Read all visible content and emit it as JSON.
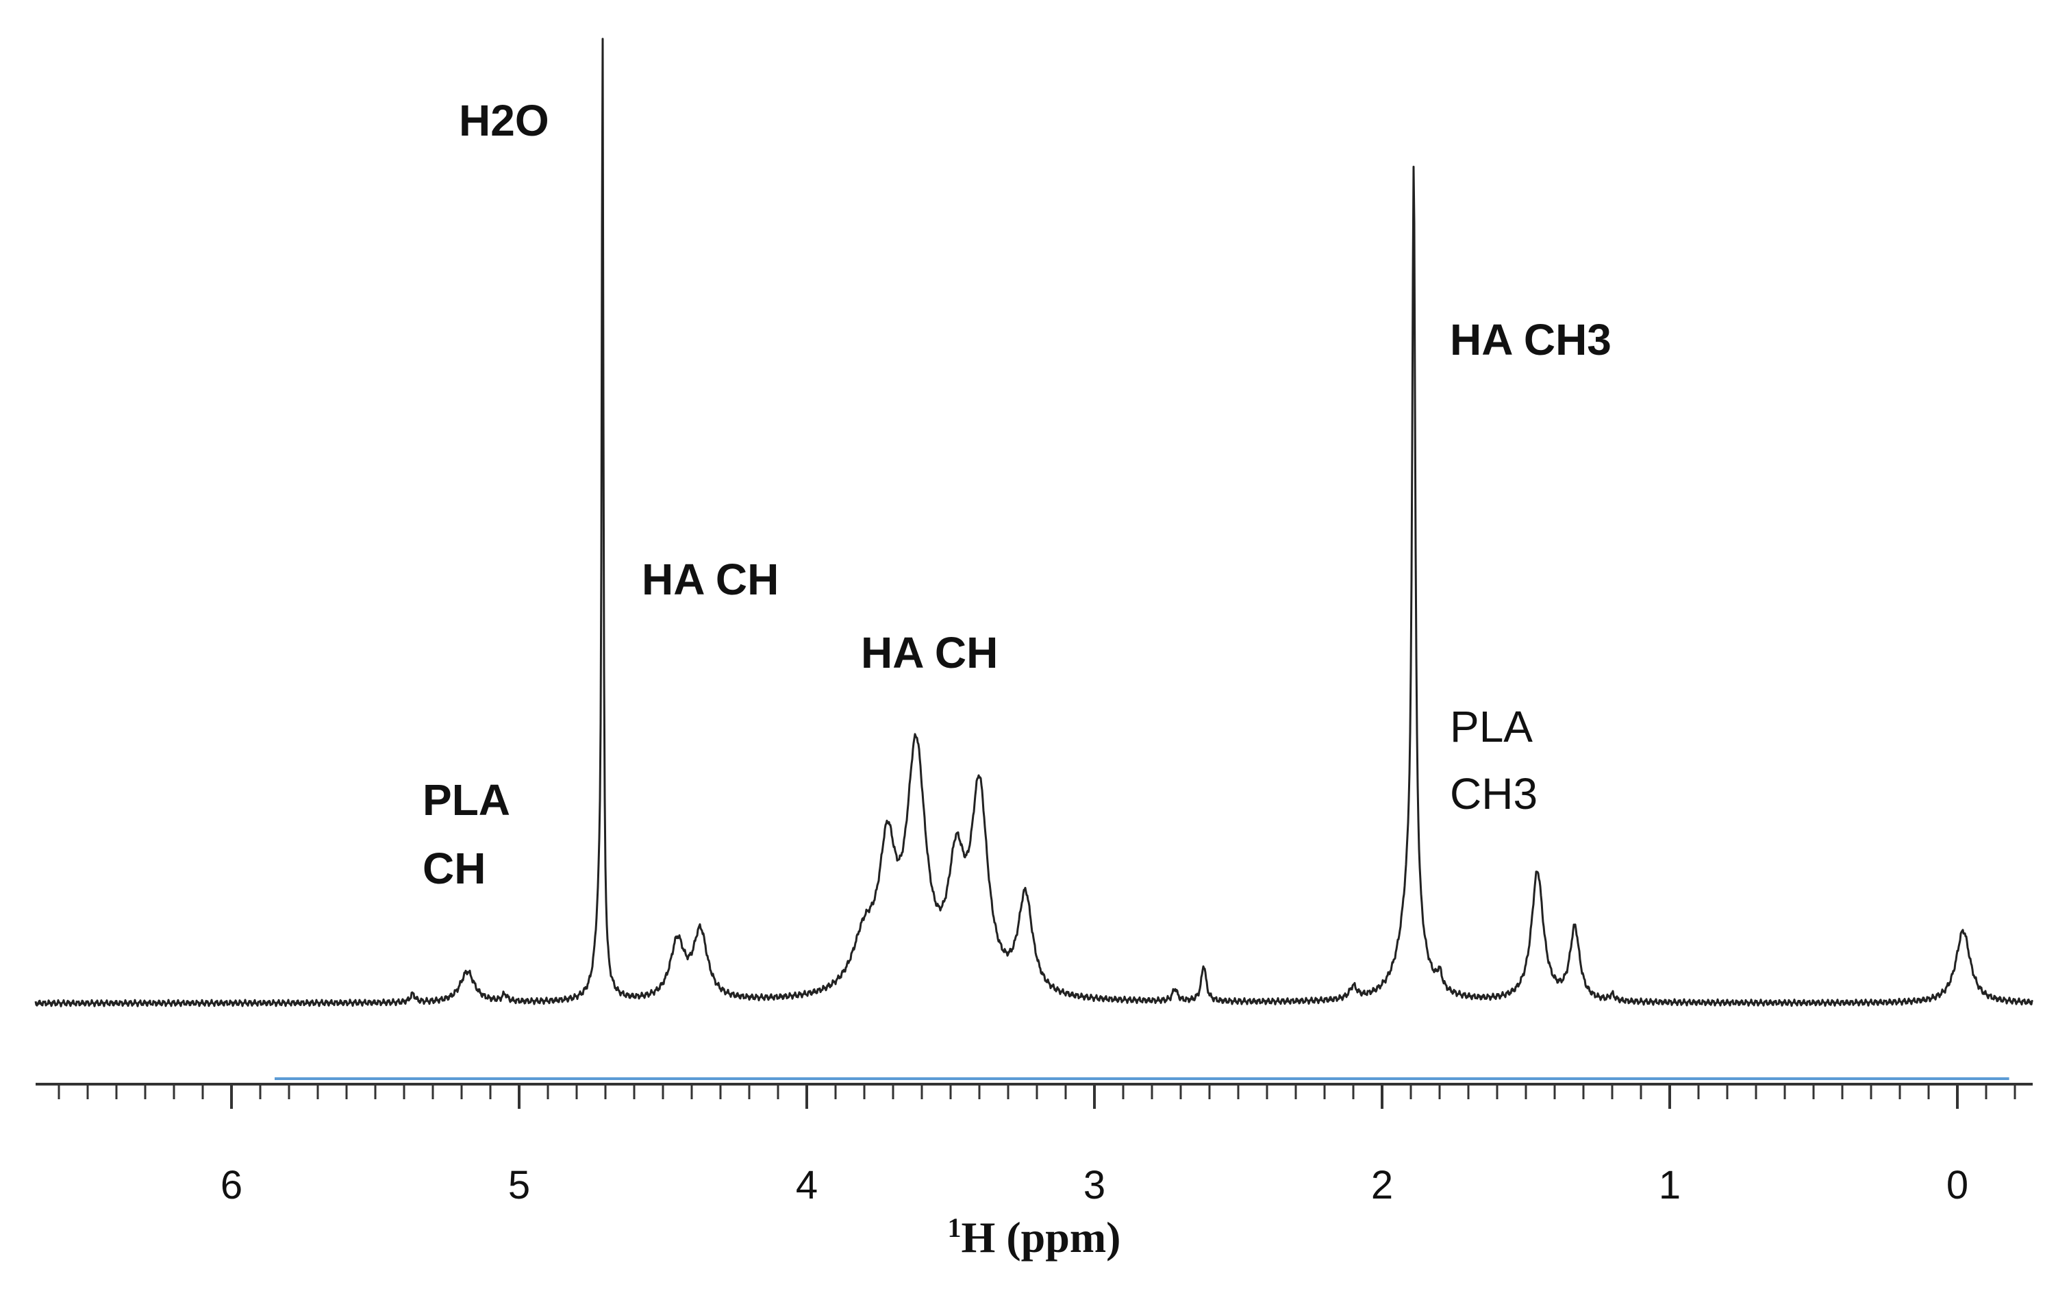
{
  "chart_data": {
    "type": "line",
    "title": "",
    "xlabel": "1H (ppm)",
    "xlabel_parts": {
      "superscript": "1",
      "main": "H (ppm)"
    },
    "ylabel": "",
    "x_reversed": true,
    "xlim": [
      6.6,
      -0.25
    ],
    "xticks": [
      6,
      5,
      4,
      3,
      2,
      1,
      0
    ],
    "xtick_labels": [
      "6",
      "5",
      "4",
      "3",
      "2",
      "1",
      "0"
    ],
    "grid": false,
    "integral_range": [
      5.85,
      -0.18
    ],
    "colors": {
      "spectrum": "#222222",
      "axis": "#333333",
      "integral": "#5b9bd5"
    },
    "peaks": [
      {
        "ppm": 5.37,
        "height": 0.008,
        "width": 0.01
      },
      {
        "ppm": 5.18,
        "height": 0.03,
        "width": 0.03
      },
      {
        "ppm": 5.05,
        "height": 0.007,
        "width": 0.01
      },
      {
        "ppm": 4.72,
        "height": 0.08,
        "width": 0.018
      },
      {
        "ppm": 4.71,
        "height": 0.885,
        "width": 0.0035
      },
      {
        "ppm": 4.45,
        "height": 0.055,
        "width": 0.03
      },
      {
        "ppm": 4.37,
        "height": 0.065,
        "width": 0.03
      },
      {
        "ppm": 3.8,
        "height": 0.05,
        "width": 0.05
      },
      {
        "ppm": 3.72,
        "height": 0.125,
        "width": 0.035
      },
      {
        "ppm": 3.62,
        "height": 0.23,
        "width": 0.04
      },
      {
        "ppm": 3.48,
        "height": 0.11,
        "width": 0.035
      },
      {
        "ppm": 3.4,
        "height": 0.19,
        "width": 0.035
      },
      {
        "ppm": 3.24,
        "height": 0.095,
        "width": 0.03
      },
      {
        "ppm": 2.72,
        "height": 0.012,
        "width": 0.01
      },
      {
        "ppm": 2.62,
        "height": 0.035,
        "width": 0.01
      },
      {
        "ppm": 2.1,
        "height": 0.012,
        "width": 0.015
      },
      {
        "ppm": 1.9,
        "height": 0.11,
        "width": 0.04
      },
      {
        "ppm": 1.89,
        "height": 0.71,
        "width": 0.0065
      },
      {
        "ppm": 1.8,
        "height": 0.015,
        "width": 0.01
      },
      {
        "ppm": 1.46,
        "height": 0.125,
        "width": 0.025
      },
      {
        "ppm": 1.33,
        "height": 0.07,
        "width": 0.02
      },
      {
        "ppm": 1.2,
        "height": 0.006,
        "width": 0.01
      },
      {
        "ppm": -0.02,
        "height": 0.07,
        "width": 0.03
      }
    ],
    "annotations": [
      {
        "id": "h2o",
        "lines": [
          "H2O"
        ],
        "bold": true
      },
      {
        "id": "ha-ch-1",
        "lines": [
          "HA CH"
        ],
        "bold": true
      },
      {
        "id": "ha-ch-2",
        "lines": [
          "HA CH"
        ],
        "bold": true
      },
      {
        "id": "pla-ch",
        "lines": [
          "PLA",
          "CH"
        ],
        "bold": true
      },
      {
        "id": "ha-ch3",
        "lines": [
          "HA CH3"
        ],
        "bold": true
      },
      {
        "id": "pla-ch3",
        "lines": [
          "PLA",
          "CH3"
        ],
        "bold": false
      }
    ]
  }
}
